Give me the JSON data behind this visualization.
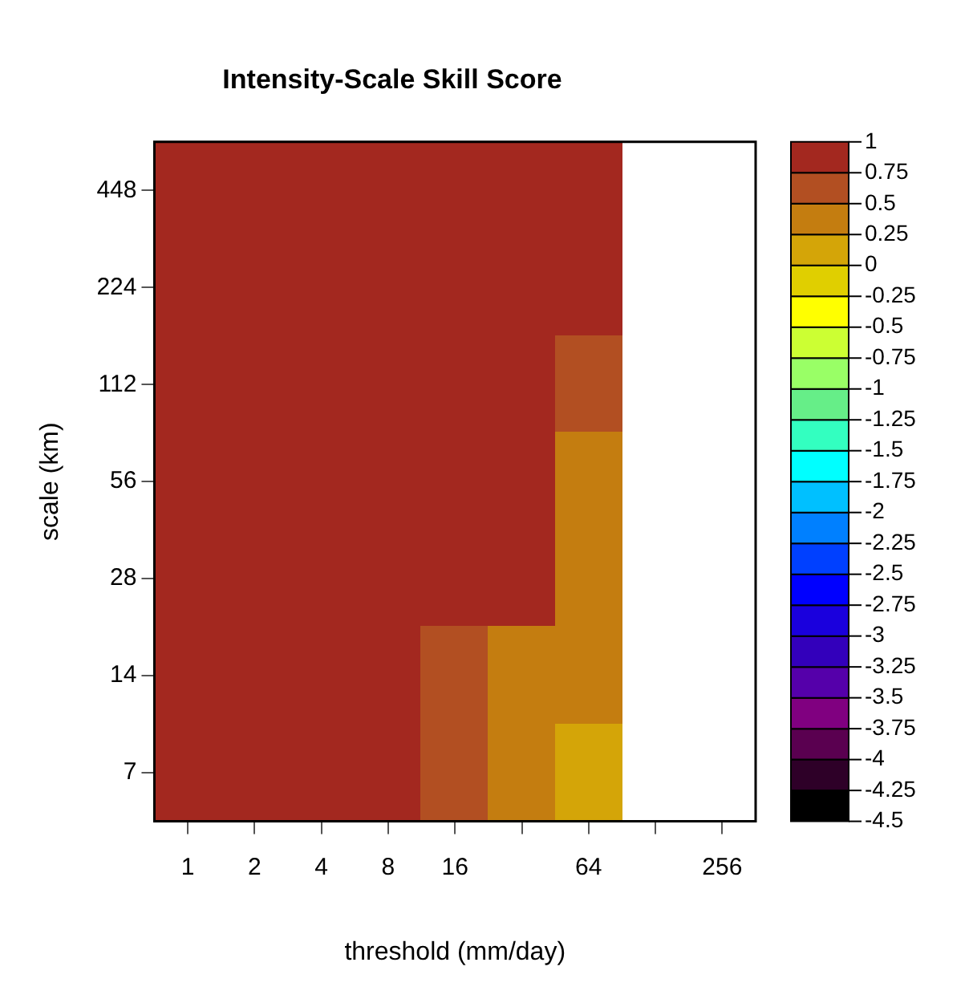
{
  "chart_data": {
    "type": "heatmap",
    "title": "Intensity-Scale Skill Score",
    "xlabel": "threshold (mm/day)",
    "ylabel": "scale (km)",
    "categories": [
      "1",
      "2",
      "4",
      "8",
      "16",
      null,
      "64",
      null,
      "256"
    ],
    "y_categories": [
      "448",
      "224",
      "112",
      "56",
      "28",
      "14",
      "7"
    ],
    "cells": [
      [
        0.9,
        0.9,
        0.9,
        0.9,
        0.9,
        0.9,
        0.9,
        null,
        null
      ],
      [
        0.9,
        0.9,
        0.9,
        0.9,
        0.9,
        0.9,
        0.9,
        null,
        null
      ],
      [
        0.9,
        0.9,
        0.9,
        0.9,
        0.9,
        0.9,
        0.6,
        null,
        null
      ],
      [
        0.9,
        0.9,
        0.9,
        0.9,
        0.9,
        0.9,
        0.4,
        null,
        null
      ],
      [
        0.9,
        0.9,
        0.9,
        0.9,
        0.9,
        0.9,
        0.4,
        null,
        null
      ],
      [
        0.9,
        0.9,
        0.9,
        0.9,
        0.6,
        0.4,
        0.4,
        null,
        null
      ],
      [
        0.9,
        0.9,
        0.9,
        0.9,
        0.6,
        0.4,
        0.1,
        null,
        null
      ]
    ],
    "clim": [
      -4.5,
      1
    ],
    "cticks": [
      -4.5,
      -4.25,
      -4,
      -3.75,
      -3.5,
      -3.25,
      -3,
      -2.75,
      -2.5,
      -2.25,
      -2,
      -1.75,
      -1.5,
      -1.25,
      -1,
      -0.75,
      -0.5,
      -0.25,
      0,
      0.25,
      0.5,
      0.75,
      1
    ],
    "colors": [
      "#000000",
      "#2e0028",
      "#5a0050",
      "#800080",
      "#5500aa",
      "#3300bb",
      "#1a00dd",
      "#0000ff",
      "#0040ff",
      "#0080ff",
      "#00c0ff",
      "#00ffff",
      "#33ffc0",
      "#66ee88",
      "#99ff66",
      "#ccff33",
      "#ffff00",
      "#e0cf00",
      "#d4a508",
      "#c47d10",
      "#b24f22",
      "#a3281f"
    ]
  }
}
